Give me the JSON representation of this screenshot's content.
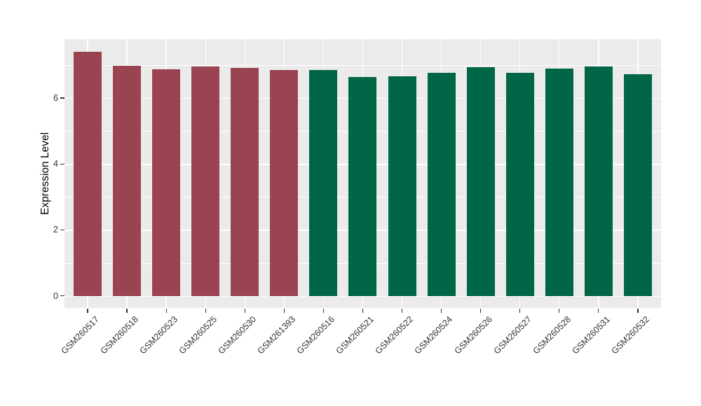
{
  "chart_data": {
    "type": "bar",
    "title": "",
    "xlabel": "",
    "ylabel": "Expression Level",
    "categories": [
      "GSM260517",
      "GSM260518",
      "GSM260523",
      "GSM260525",
      "GSM260530",
      "GSM261393",
      "GSM260516",
      "GSM260521",
      "GSM260522",
      "GSM260524",
      "GSM260526",
      "GSM260527",
      "GSM260528",
      "GSM260531",
      "GSM260532"
    ],
    "values": [
      7.4,
      6.97,
      6.87,
      6.96,
      6.92,
      6.85,
      6.85,
      6.64,
      6.65,
      6.77,
      6.94,
      6.76,
      6.9,
      6.95,
      6.73
    ],
    "bar_colors": [
      "#9A4452",
      "#9A4452",
      "#9A4452",
      "#9A4452",
      "#9A4452",
      "#9A4452",
      "#006647",
      "#006647",
      "#006647",
      "#006647",
      "#006647",
      "#006647",
      "#006647",
      "#006647",
      "#006647"
    ],
    "group_colors": {
      "maroon_group": "#9A4452",
      "green_group": "#006647"
    },
    "yticks": [
      0,
      2,
      4,
      6
    ],
    "minor_yticks": [
      1,
      3,
      5,
      7
    ],
    "ylim": [
      0,
      7.78
    ],
    "grid": true,
    "legend": false,
    "panel_bg": "#EBEBEB",
    "grid_color": "#FFFFFF",
    "tick_label_color": "#333333",
    "axis_title_color": "#000000"
  }
}
